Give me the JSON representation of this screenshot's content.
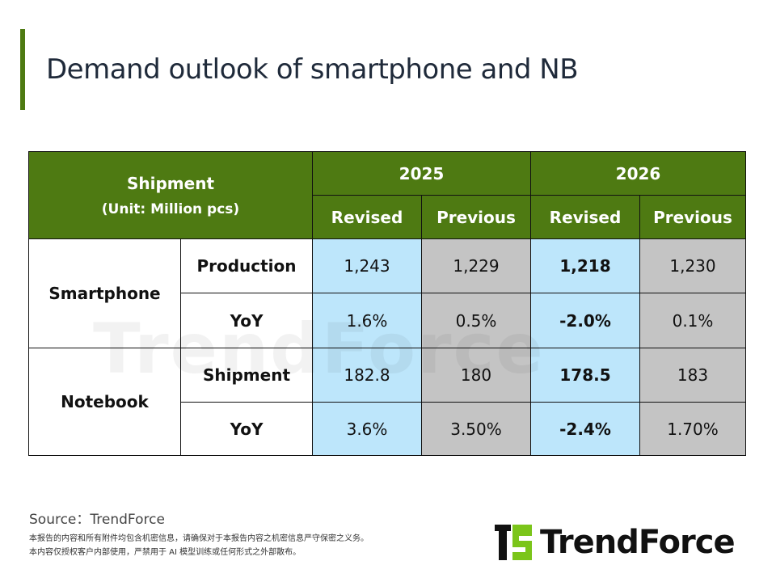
{
  "title": "Demand outlook of smartphone and NB",
  "colors": {
    "header_green": "#4e7a12",
    "revised_blue": "#bde6fb",
    "previous_gray": "#c4c4c4",
    "logo_green": "#7bc51a"
  },
  "table": {
    "corner_title": "Shipment",
    "corner_unit": "(Unit: Million pcs)",
    "years": [
      "2025",
      "2026"
    ],
    "subheaders": [
      "Revised",
      "Previous",
      "Revised",
      "Previous"
    ],
    "groups": [
      {
        "label": "Smartphone",
        "rows": [
          {
            "metric": "Production",
            "values": [
              "1,243",
              "1,229",
              "1,218",
              "1,230"
            ]
          },
          {
            "metric": "YoY",
            "values": [
              "1.6%",
              "0.5%",
              "-2.0%",
              "0.1%"
            ]
          }
        ]
      },
      {
        "label": "Notebook",
        "rows": [
          {
            "metric": "Shipment",
            "values": [
              "182.8",
              "180",
              "178.5",
              "183"
            ]
          },
          {
            "metric": "YoY",
            "values": [
              "3.6%",
              "3.50%",
              "-2.4%",
              "1.70%"
            ]
          }
        ]
      }
    ]
  },
  "watermark": "TrendForce",
  "source": "Source：TrendForce",
  "disclaimer": [
    "本报告的内容和所有附件均包含机密信息，请确保对于本报告内容之机密信息严守保密之义务。",
    "本内容仅授权客户内部使用，严禁用于 AI 模型训练或任何形式之外部散布。"
  ],
  "logo_text": "TrendForce"
}
